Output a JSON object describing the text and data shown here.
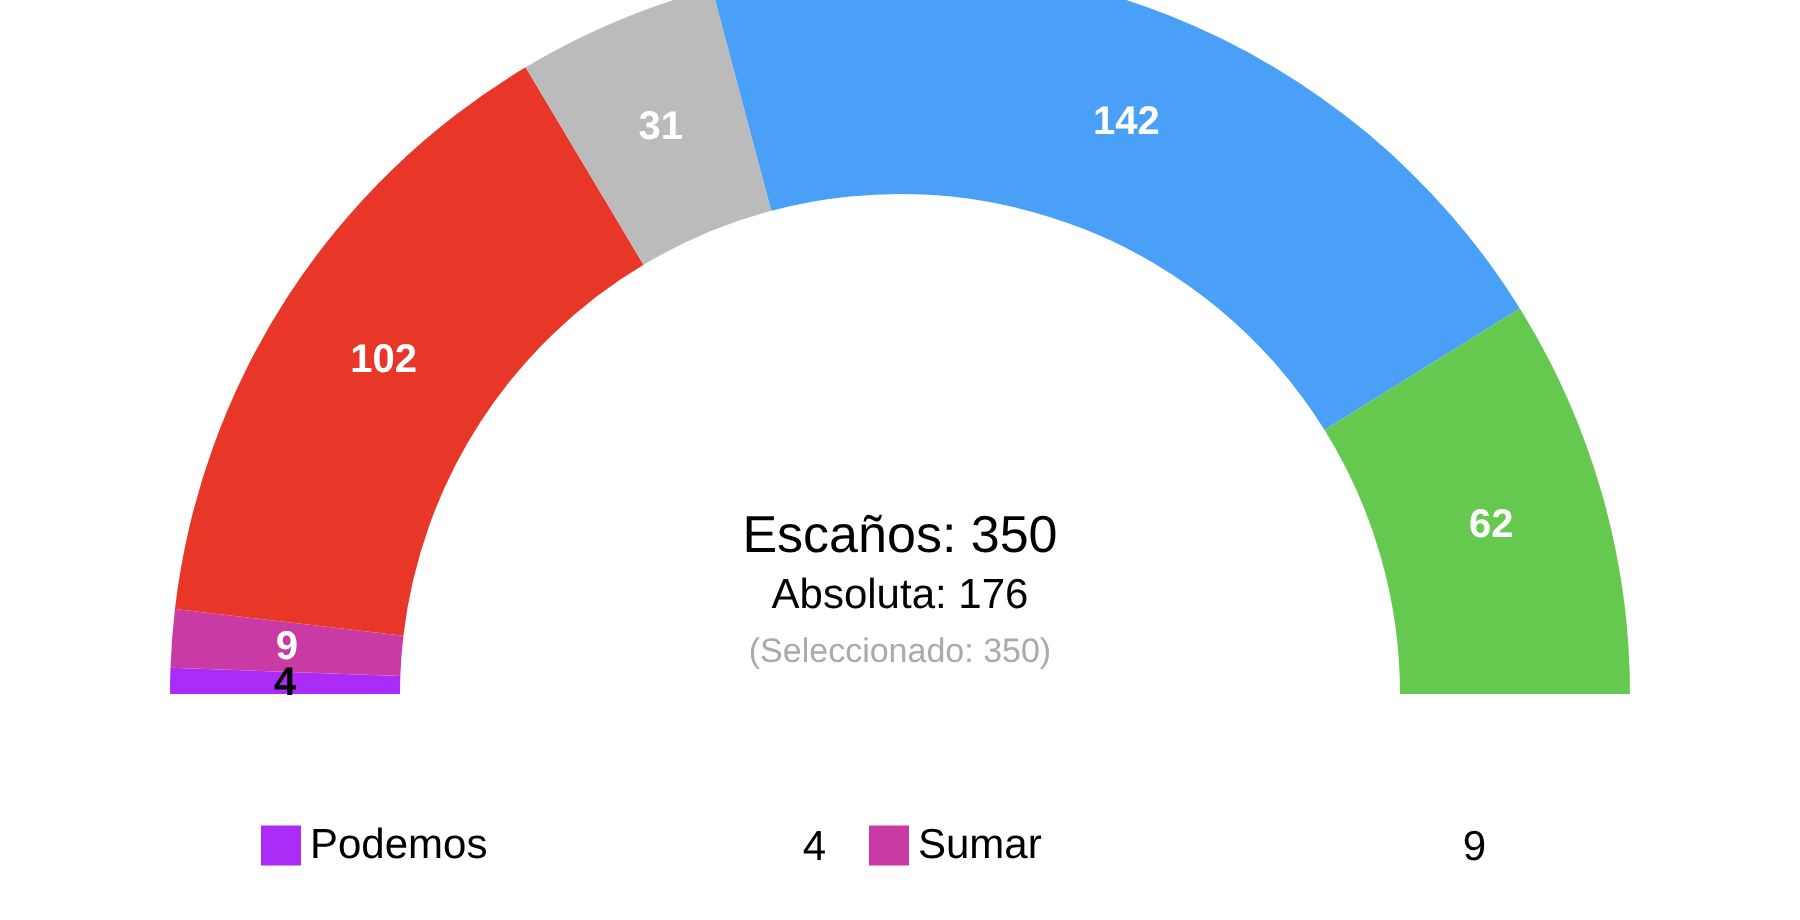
{
  "chart_data": {
    "type": "donut",
    "categories": [
      "Podemos",
      "Sumar",
      null,
      null,
      null,
      null
    ],
    "values": [
      4,
      9,
      102,
      31,
      142,
      62
    ],
    "colors": [
      "#a92bf5",
      "#c93aa5",
      "#e83628",
      "#bbbbbb",
      "#4aa0f7",
      "#66c94f"
    ],
    "data_labels": true,
    "legend": "bottom",
    "annotations": [
      "Escaños: 350",
      "Absoluta: 176",
      "(Seleccionado: 350)",
      "4",
      "9"
    ]
  }
}
